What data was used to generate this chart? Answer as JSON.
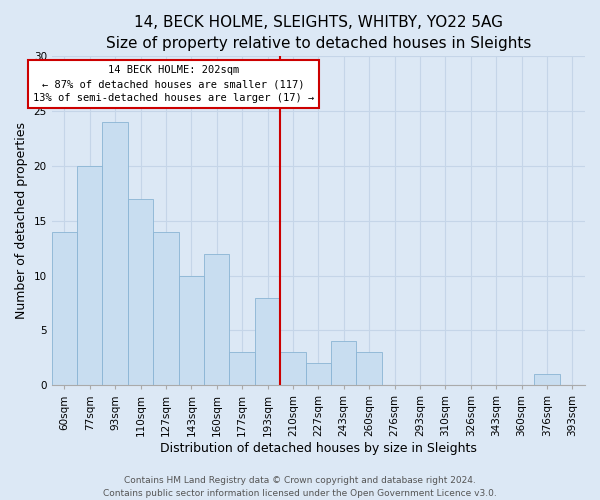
{
  "title": "14, BECK HOLME, SLEIGHTS, WHITBY, YO22 5AG",
  "subtitle": "Size of property relative to detached houses in Sleights",
  "xlabel": "Distribution of detached houses by size in Sleights",
  "ylabel": "Number of detached properties",
  "bar_labels": [
    "60sqm",
    "77sqm",
    "93sqm",
    "110sqm",
    "127sqm",
    "143sqm",
    "160sqm",
    "177sqm",
    "193sqm",
    "210sqm",
    "227sqm",
    "243sqm",
    "260sqm",
    "276sqm",
    "293sqm",
    "310sqm",
    "326sqm",
    "343sqm",
    "360sqm",
    "376sqm",
    "393sqm"
  ],
  "bar_values": [
    14,
    20,
    24,
    17,
    14,
    10,
    12,
    3,
    8,
    3,
    2,
    4,
    3,
    0,
    0,
    0,
    0,
    0,
    0,
    1,
    0
  ],
  "bar_color": "#c8ddf0",
  "bar_edge_color": "#8ab4d4",
  "reference_line_label": "14 BECK HOLME: 202sqm",
  "annotation_line1": "← 87% of detached houses are smaller (117)",
  "annotation_line2": "13% of semi-detached houses are larger (17) →",
  "annotation_box_color": "#ffffff",
  "annotation_box_edge_color": "#cc0000",
  "reference_line_color": "#cc0000",
  "ylim": [
    0,
    30
  ],
  "footer_line1": "Contains HM Land Registry data © Crown copyright and database right 2024.",
  "footer_line2": "Contains public sector information licensed under the Open Government Licence v3.0.",
  "background_color": "#dce8f5",
  "grid_color": "#c5d5e8",
  "title_fontsize": 11,
  "subtitle_fontsize": 9.5,
  "axis_label_fontsize": 9,
  "tick_fontsize": 7.5,
  "footer_fontsize": 6.5,
  "ref_line_bar_index": 9
}
